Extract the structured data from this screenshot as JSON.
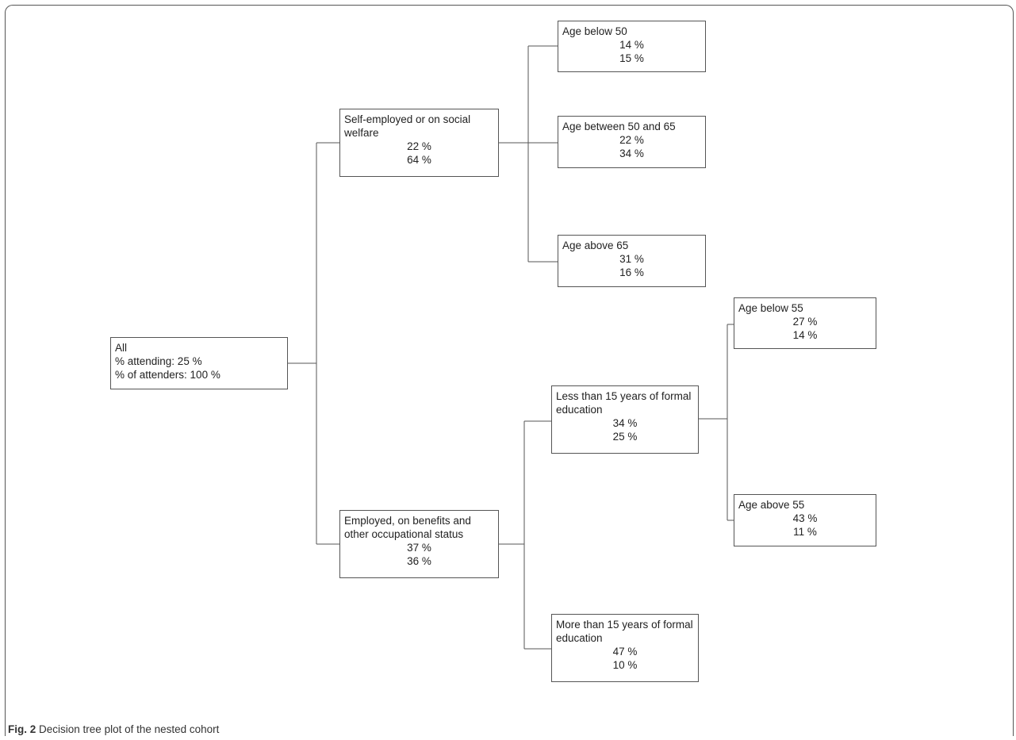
{
  "nodes": {
    "root": {
      "label": "All",
      "line1": "% attending: 25 %",
      "line2": "% of attenders: 100 %"
    },
    "self_employed": {
      "label": "Self-employed or on social welfare",
      "v1": "22 %",
      "v2": "64 %"
    },
    "employed": {
      "label": "Employed, on benefits and other occupational status",
      "v1": "37 %",
      "v2": "36 %"
    },
    "age_below_50": {
      "label": "Age below 50",
      "v1": "14 %",
      "v2": "15 %"
    },
    "age_50_65": {
      "label": "Age between 50 and 65",
      "v1": "22 %",
      "v2": "34 %"
    },
    "age_above_65": {
      "label": "Age above 65",
      "v1": "31 %",
      "v2": "16 %"
    },
    "less_15_edu": {
      "label": "Less than 15 years of formal education",
      "v1": "34 %",
      "v2": "25 %"
    },
    "more_15_edu": {
      "label": "More than 15 years of formal education",
      "v1": "47 %",
      "v2": "10 %"
    },
    "age_below_55": {
      "label": "Age below 55",
      "v1": "27 %",
      "v2": "14 %"
    },
    "age_above_55": {
      "label": "Age above 55",
      "v1": "43 %",
      "v2": "11 %"
    }
  },
  "caption": {
    "prefix": "Fig. 2",
    "text": "Decision tree plot of the nested cohort"
  }
}
